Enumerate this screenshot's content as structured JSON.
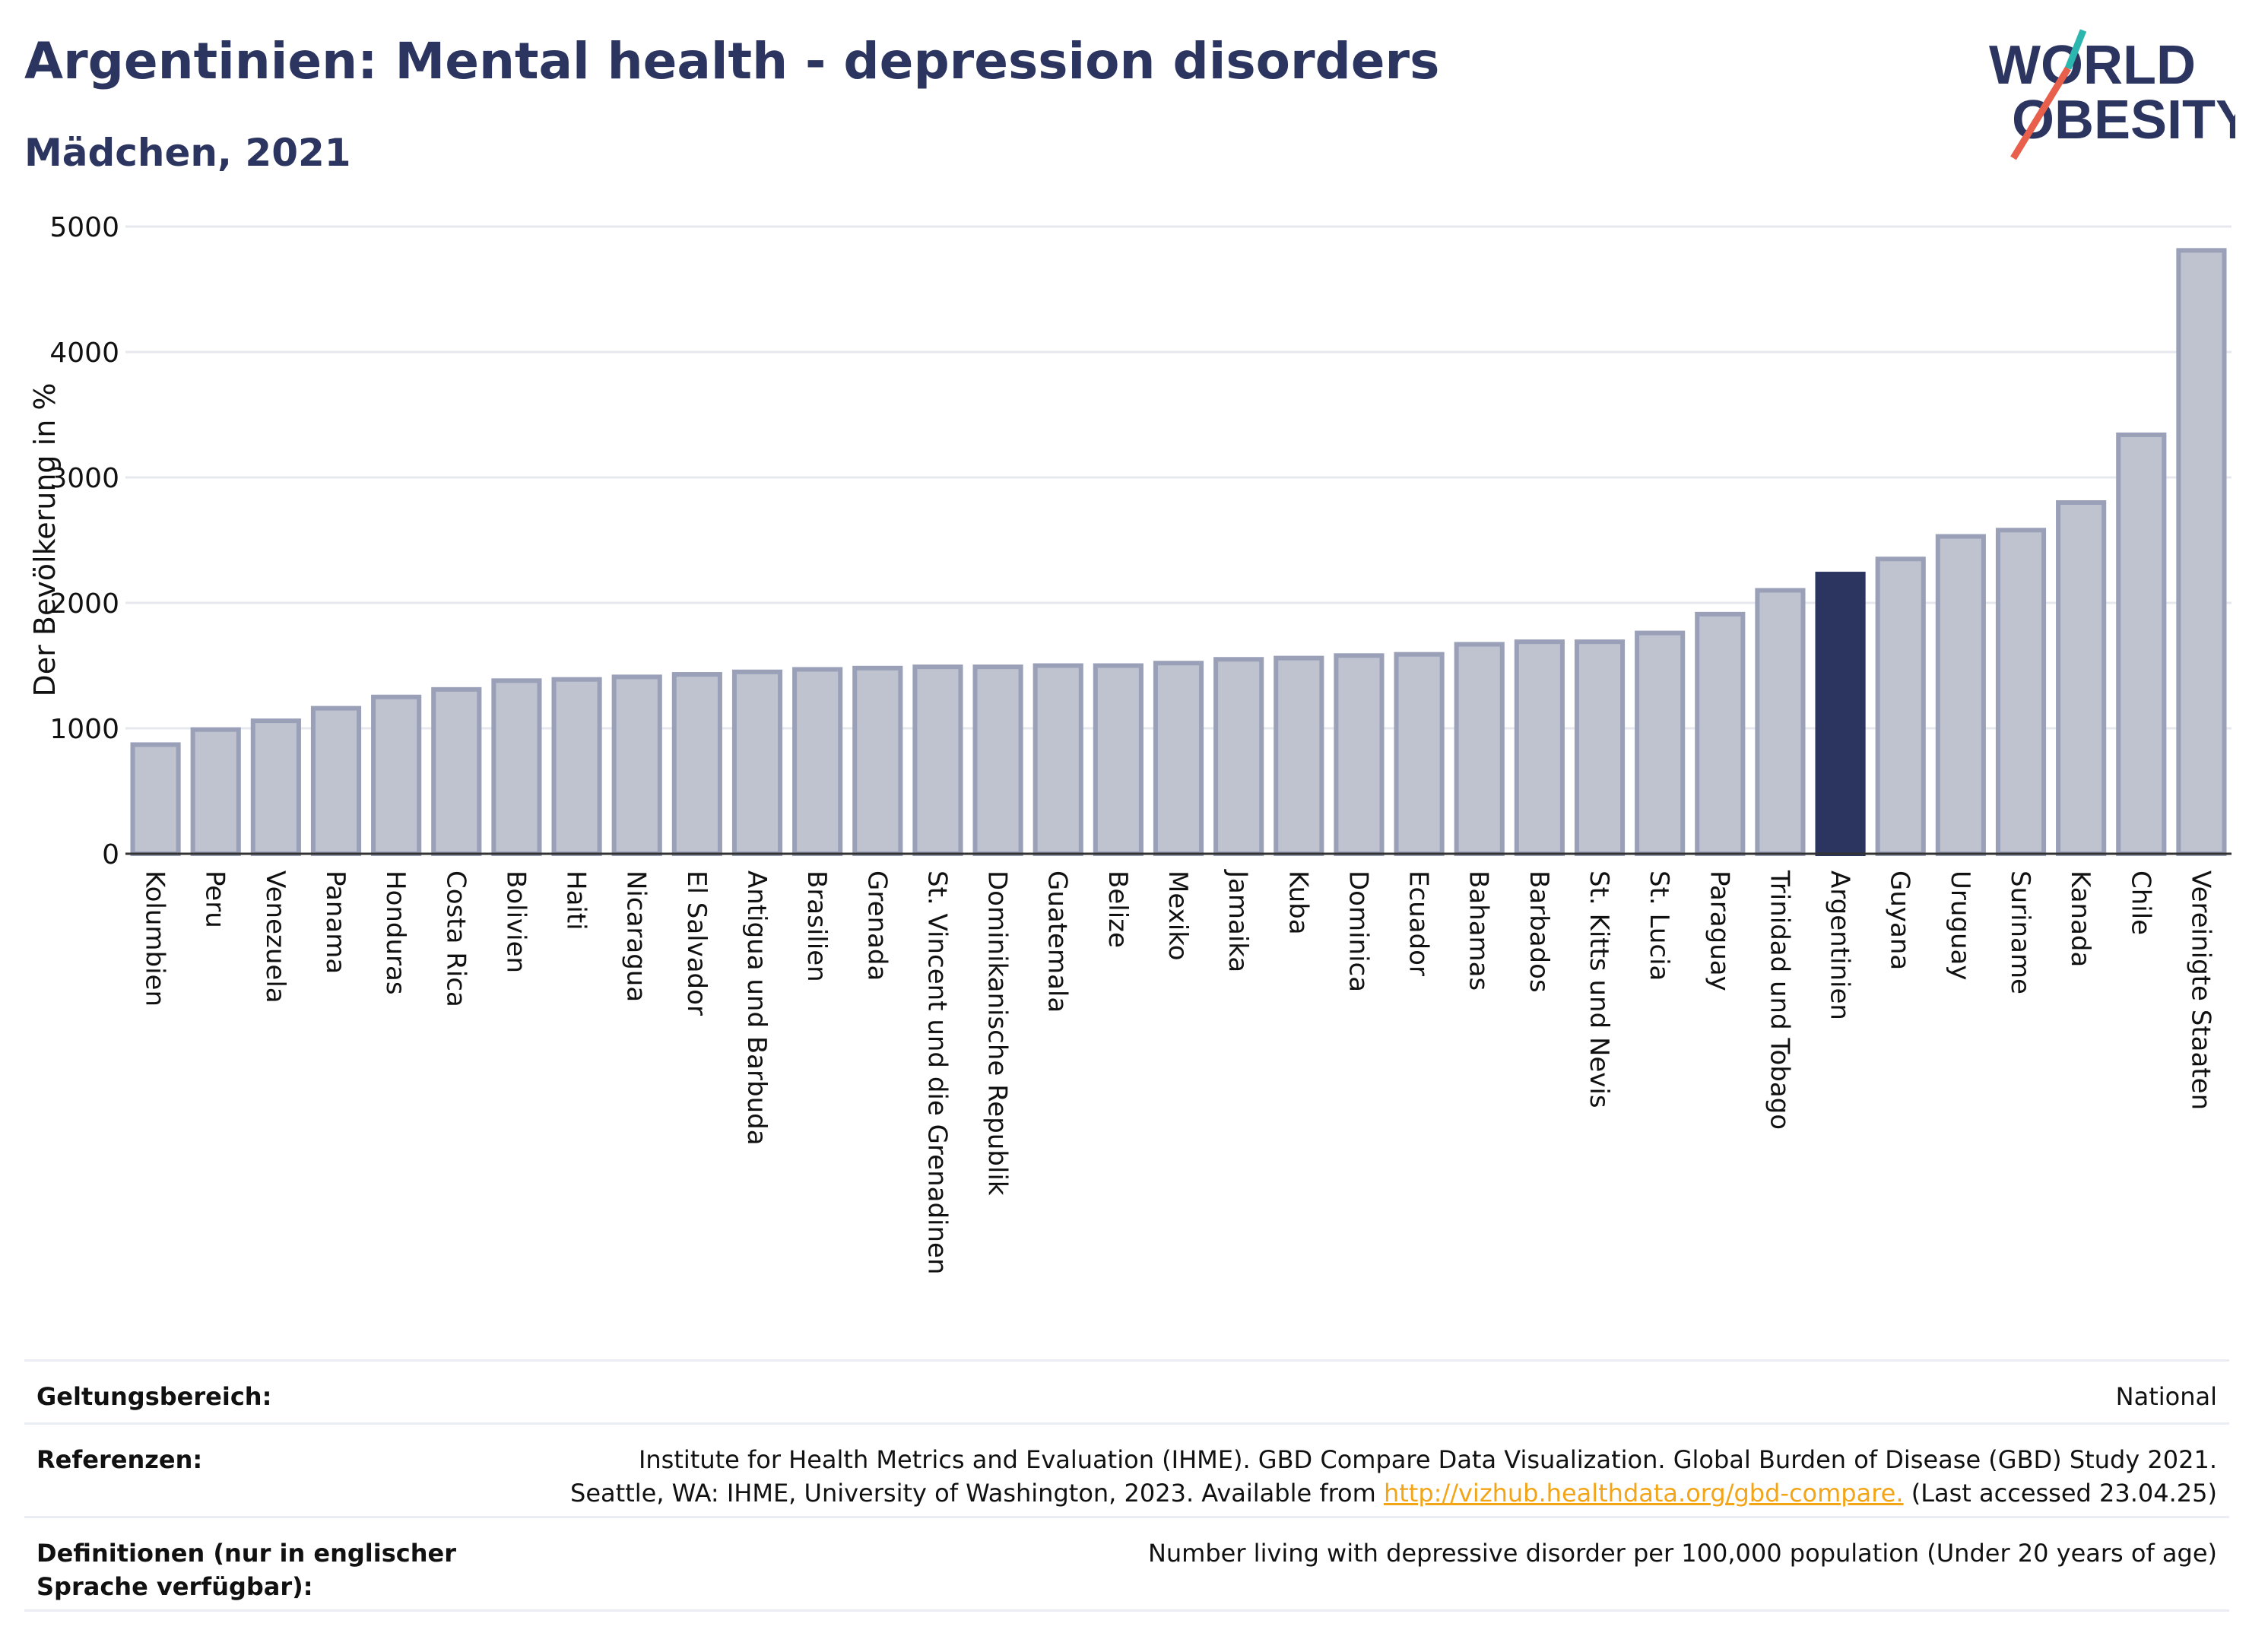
{
  "header": {
    "title": "Argentinien: Mental health - depression disorders",
    "subtitle": "Mädchen, 2021"
  },
  "logo": {
    "line1": "WORLD",
    "line2": "OBESITY"
  },
  "colors": {
    "primary": "#2b3560",
    "bar": "#bfc2cf",
    "bar_border": "#99a0b8",
    "highlight": "#2b3560",
    "link": "#f3a518",
    "logo_teal": "#2bb6b0",
    "logo_red": "#e8604c"
  },
  "chart_data": {
    "type": "bar",
    "ylabel": "Der Bevölkerung in %",
    "ylim": [
      0,
      5000
    ],
    "yticks": [
      0,
      1000,
      2000,
      3000,
      4000,
      5000
    ],
    "grid": true,
    "highlight": "Argentinien",
    "categories": [
      "Kolumbien",
      "Peru",
      "Venezuela",
      "Panama",
      "Honduras",
      "Costa Rica",
      "Bolivien",
      "Haiti",
      "Nicaragua",
      "El Salvador",
      "Antigua und Barbuda",
      "Brasilien",
      "Grenada",
      "St. Vincent und die Grenadinen",
      "Dominikanische Republik",
      "Guatemala",
      "Belize",
      "Mexiko",
      "Jamaika",
      "Kuba",
      "Dominica",
      "Ecuador",
      "Bahamas",
      "Barbados",
      "St. Kitts und Nevis",
      "St. Lucia",
      "Paraguay",
      "Trinidad und Tobago",
      "Argentinien",
      "Guyana",
      "Uruguay",
      "Suriname",
      "Kanada",
      "Chile",
      "Vereinigte Staaten"
    ],
    "values": [
      870,
      990,
      1060,
      1160,
      1250,
      1310,
      1380,
      1390,
      1410,
      1430,
      1450,
      1470,
      1480,
      1490,
      1490,
      1500,
      1500,
      1520,
      1550,
      1560,
      1580,
      1590,
      1670,
      1690,
      1690,
      1760,
      1910,
      2100,
      2230,
      2350,
      2530,
      2580,
      2800,
      3340,
      4810
    ]
  },
  "footer": {
    "scope_label": "Geltungsbereich:",
    "scope_value": "National",
    "refs_label": "Referenzen:",
    "refs_line1": "Institute for Health Metrics and Evaluation (IHME). GBD Compare Data Visualization. Global Burden of Disease (GBD) Study 2021.",
    "refs_line2_pre": "Seattle, WA: IHME, University of Washington, 2023. Available from",
    "refs_link": "http://vizhub.healthdata.org/gbd-compare.",
    "refs_line2_post": "(Last accessed 23.04.25)",
    "def_label": "Definitionen (nur in englischer Sprache verfügbar):",
    "def_value": "Number living with depressive disorder per 100,000 population (Under 20 years of age)"
  }
}
